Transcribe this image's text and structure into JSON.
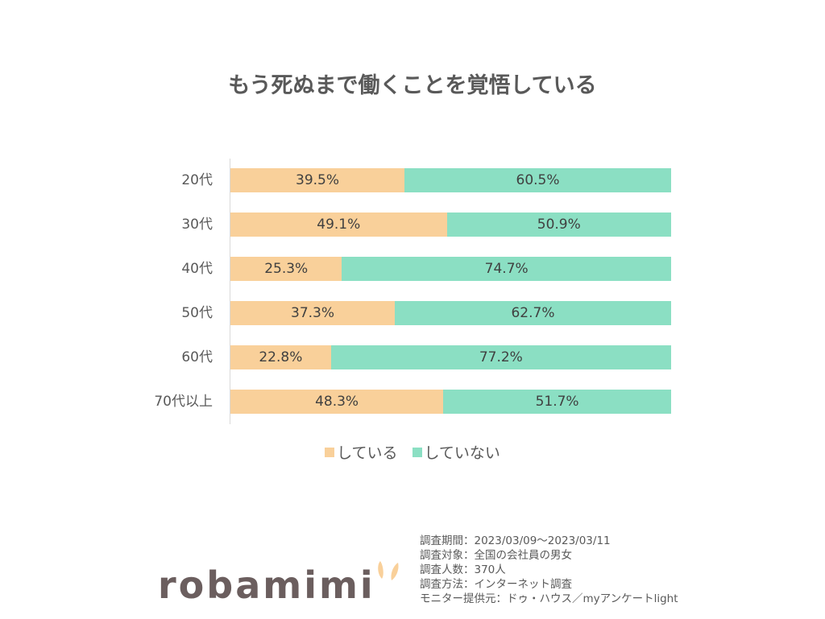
{
  "title": "もう死ぬまで働くことを覚悟している",
  "colors": {
    "yes": "#f9d09a",
    "no": "#8bdfc3",
    "axis": "#d9d9d9",
    "text": "#404040",
    "logo": "#6b5e5e",
    "logo_ear": "#f9d09a"
  },
  "legend": [
    {
      "label": "している",
      "color": "#f9d09a"
    },
    {
      "label": "していない",
      "color": "#8bdfc3"
    }
  ],
  "rows": [
    {
      "category": "20代",
      "yes_label": "39.5%",
      "no_label": "60.5%",
      "yes": 39.5,
      "no": 60.5
    },
    {
      "category": "30代",
      "yes_label": "49.1%",
      "no_label": "50.9%",
      "yes": 49.1,
      "no": 50.9
    },
    {
      "category": "40代",
      "yes_label": "25.3%",
      "no_label": "74.7%",
      "yes": 25.3,
      "no": 74.7
    },
    {
      "category": "50代",
      "yes_label": "37.3%",
      "no_label": "62.7%",
      "yes": 37.3,
      "no": 62.7
    },
    {
      "category": "60代",
      "yes_label": "22.8%",
      "no_label": "77.2%",
      "yes": 22.8,
      "no": 77.2
    },
    {
      "category": "70代以上",
      "yes_label": "48.3%",
      "no_label": "51.7%",
      "yes": 48.3,
      "no": 51.7
    }
  ],
  "notes": [
    "調査期間：2023/03/09～2023/03/11",
    "調査対象：全国の会社員の男女",
    "調査人数：370人",
    "調査方法：インターネット調査",
    "モニター提供元：ドゥ・ハウス／myアンケートlight"
  ],
  "logo": {
    "text": "robamimi"
  },
  "chart_data": {
    "type": "bar",
    "orientation": "horizontal",
    "stacked": "percent",
    "title": "もう死ぬまで働くことを覚悟している",
    "categories": [
      "20代",
      "30代",
      "40代",
      "50代",
      "60代",
      "70代以上"
    ],
    "series": [
      {
        "name": "している",
        "color": "#f9d09a",
        "values": [
          39.5,
          49.1,
          25.3,
          37.3,
          22.8,
          48.3
        ]
      },
      {
        "name": "していない",
        "color": "#8bdfc3",
        "values": [
          60.5,
          50.9,
          74.7,
          62.7,
          77.2,
          51.7
        ]
      }
    ],
    "xlabel": "",
    "ylabel": "",
    "xlim": [
      0,
      100
    ],
    "grid": false,
    "legend_position": "bottom",
    "data_labels": true
  }
}
